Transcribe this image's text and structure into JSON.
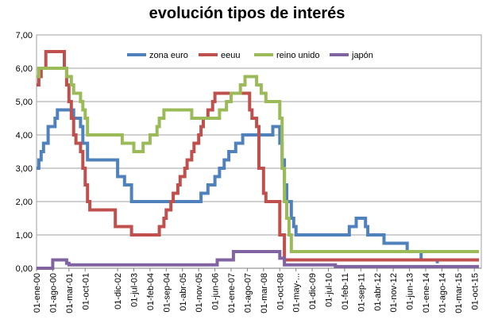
{
  "chart_data": {
    "type": "line",
    "title": "evolución tipos de interés",
    "xlabel": "",
    "ylabel": "",
    "ylim": [
      0,
      7
    ],
    "yticks": [
      "0,00",
      "1,00",
      "2,00",
      "3,00",
      "4,00",
      "5,00",
      "6,00",
      "7,00"
    ],
    "xlim": [
      "2000-01",
      "2016-01"
    ],
    "xticks": [
      {
        "label": "01-ene-00",
        "date": "2000-01"
      },
      {
        "label": "01-ago-00",
        "date": "2000-08"
      },
      {
        "label": "01-mar-01",
        "date": "2001-03"
      },
      {
        "label": "01-oct-01",
        "date": "2001-10"
      },
      {
        "label": "01-dic-02",
        "date": "2002-12"
      },
      {
        "label": "01-jul-03",
        "date": "2003-07"
      },
      {
        "label": "01-feb-04",
        "date": "2004-02"
      },
      {
        "label": "01-sep-04",
        "date": "2004-09"
      },
      {
        "label": "01-abr-05",
        "date": "2005-04"
      },
      {
        "label": "01-nov-05",
        "date": "2005-11"
      },
      {
        "label": "01-jun-06",
        "date": "2006-06"
      },
      {
        "label": "01-ene-07",
        "date": "2007-01"
      },
      {
        "label": "01-ago-07",
        "date": "2007-08"
      },
      {
        "label": "01-mar-08",
        "date": "2008-03"
      },
      {
        "label": "01-oct-08",
        "date": "2008-10"
      },
      {
        "label": "01-may-...",
        "date": "2009-05"
      },
      {
        "label": "01-dic-09",
        "date": "2009-12"
      },
      {
        "label": "01-jul-10",
        "date": "2010-07"
      },
      {
        "label": "01-feb-11",
        "date": "2011-02"
      },
      {
        "label": "01-sep-11",
        "date": "2011-09"
      },
      {
        "label": "01-abr-12",
        "date": "2012-04"
      },
      {
        "label": "01-nov-12",
        "date": "2012-11"
      },
      {
        "label": "01-jun-13",
        "date": "2013-06"
      },
      {
        "label": "01-ene-14",
        "date": "2014-01"
      },
      {
        "label": "01-ago-14",
        "date": "2014-08"
      },
      {
        "label": "01-mar-15",
        "date": "2015-03"
      },
      {
        "label": "01-oct-15",
        "date": "2015-10"
      }
    ],
    "grid": {
      "horizontal": true,
      "vertical": false
    },
    "legend": "top, inside plot",
    "series": [
      {
        "name": "zona euro",
        "color": "#4F81BD",
        "points": [
          [
            "2000-01",
            3.0
          ],
          [
            "2000-02",
            3.25
          ],
          [
            "2000-03",
            3.5
          ],
          [
            "2000-04",
            3.75
          ],
          [
            "2000-06",
            4.25
          ],
          [
            "2000-09",
            4.5
          ],
          [
            "2000-10",
            4.75
          ],
          [
            "2001-05",
            4.5
          ],
          [
            "2001-08",
            4.25
          ],
          [
            "2001-09",
            3.75
          ],
          [
            "2001-11",
            3.25
          ],
          [
            "2002-12",
            2.75
          ],
          [
            "2003-03",
            2.5
          ],
          [
            "2003-06",
            2.0
          ],
          [
            "2005-12",
            2.25
          ],
          [
            "2006-03",
            2.5
          ],
          [
            "2006-06",
            2.75
          ],
          [
            "2006-08",
            3.0
          ],
          [
            "2006-10",
            3.25
          ],
          [
            "2006-12",
            3.5
          ],
          [
            "2007-03",
            3.75
          ],
          [
            "2007-06",
            4.0
          ],
          [
            "2008-07",
            4.25
          ],
          [
            "2008-10",
            3.75
          ],
          [
            "2008-11",
            3.25
          ],
          [
            "2008-12",
            2.5
          ],
          [
            "2009-01",
            2.0
          ],
          [
            "2009-03",
            1.5
          ],
          [
            "2009-04",
            1.25
          ],
          [
            "2009-05",
            1.0
          ],
          [
            "2011-04",
            1.25
          ],
          [
            "2011-07",
            1.5
          ],
          [
            "2011-11",
            1.25
          ],
          [
            "2011-12",
            1.0
          ],
          [
            "2012-07",
            0.75
          ],
          [
            "2013-05",
            0.5
          ],
          [
            "2013-11",
            0.25
          ],
          [
            "2014-06",
            0.15
          ]
        ]
      },
      {
        "name": "eeuu",
        "color": "#C0504D",
        "points": [
          [
            "2000-01",
            5.5
          ],
          [
            "2000-02",
            5.75
          ],
          [
            "2000-03",
            6.0
          ],
          [
            "2000-05",
            6.5
          ],
          [
            "2001-01",
            6.0
          ],
          [
            "2001-02",
            5.5
          ],
          [
            "2001-03",
            5.0
          ],
          [
            "2001-04",
            4.5
          ],
          [
            "2001-05",
            4.0
          ],
          [
            "2001-06",
            3.75
          ],
          [
            "2001-08",
            3.5
          ],
          [
            "2001-09",
            3.0
          ],
          [
            "2001-10",
            2.5
          ],
          [
            "2001-11",
            2.0
          ],
          [
            "2001-12",
            1.75
          ],
          [
            "2002-11",
            1.25
          ],
          [
            "2003-06",
            1.0
          ],
          [
            "2004-06",
            1.25
          ],
          [
            "2004-08",
            1.5
          ],
          [
            "2004-09",
            1.75
          ],
          [
            "2004-11",
            2.0
          ],
          [
            "2004-12",
            2.25
          ],
          [
            "2005-02",
            2.5
          ],
          [
            "2005-03",
            2.75
          ],
          [
            "2005-05",
            3.0
          ],
          [
            "2005-06",
            3.25
          ],
          [
            "2005-08",
            3.5
          ],
          [
            "2005-09",
            3.75
          ],
          [
            "2005-11",
            4.0
          ],
          [
            "2005-12",
            4.25
          ],
          [
            "2006-01",
            4.5
          ],
          [
            "2006-03",
            4.75
          ],
          [
            "2006-05",
            5.0
          ],
          [
            "2006-06",
            5.25
          ],
          [
            "2007-09",
            4.75
          ],
          [
            "2007-10",
            4.5
          ],
          [
            "2007-12",
            4.25
          ],
          [
            "2008-01",
            3.0
          ],
          [
            "2008-03",
            2.25
          ],
          [
            "2008-04",
            2.0
          ],
          [
            "2008-10",
            1.0
          ],
          [
            "2008-12",
            0.25
          ],
          [
            "2015-12",
            0.25
          ]
        ]
      },
      {
        "name": "reino unido",
        "color": "#9BBB59",
        "points": [
          [
            "2000-01",
            5.75
          ],
          [
            "2000-02",
            6.0
          ],
          [
            "2001-02",
            5.75
          ],
          [
            "2001-04",
            5.5
          ],
          [
            "2001-05",
            5.25
          ],
          [
            "2001-08",
            5.0
          ],
          [
            "2001-09",
            4.75
          ],
          [
            "2001-10",
            4.5
          ],
          [
            "2001-11",
            4.0
          ],
          [
            "2003-02",
            3.75
          ],
          [
            "2003-07",
            3.5
          ],
          [
            "2003-11",
            3.75
          ],
          [
            "2004-02",
            4.0
          ],
          [
            "2004-05",
            4.25
          ],
          [
            "2004-06",
            4.5
          ],
          [
            "2004-08",
            4.75
          ],
          [
            "2005-08",
            4.5
          ],
          [
            "2006-08",
            4.75
          ],
          [
            "2006-11",
            5.0
          ],
          [
            "2007-01",
            5.25
          ],
          [
            "2007-05",
            5.5
          ],
          [
            "2007-07",
            5.75
          ],
          [
            "2007-12",
            5.5
          ],
          [
            "2008-02",
            5.25
          ],
          [
            "2008-04",
            5.0
          ],
          [
            "2008-10",
            4.5
          ],
          [
            "2008-11",
            3.0
          ],
          [
            "2008-12",
            2.0
          ],
          [
            "2009-01",
            1.5
          ],
          [
            "2009-02",
            1.0
          ],
          [
            "2009-03",
            0.5
          ],
          [
            "2015-12",
            0.5
          ]
        ]
      },
      {
        "name": "japón",
        "color": "#8064A2",
        "points": [
          [
            "2000-01",
            0.0
          ],
          [
            "2000-08",
            0.25
          ],
          [
            "2001-02",
            0.15
          ],
          [
            "2001-03",
            0.1
          ],
          [
            "2006-07",
            0.25
          ],
          [
            "2007-02",
            0.5
          ],
          [
            "2008-10",
            0.3
          ],
          [
            "2008-12",
            0.1
          ],
          [
            "2010-10",
            0.05
          ],
          [
            "2015-12",
            0.05
          ]
        ]
      }
    ]
  }
}
